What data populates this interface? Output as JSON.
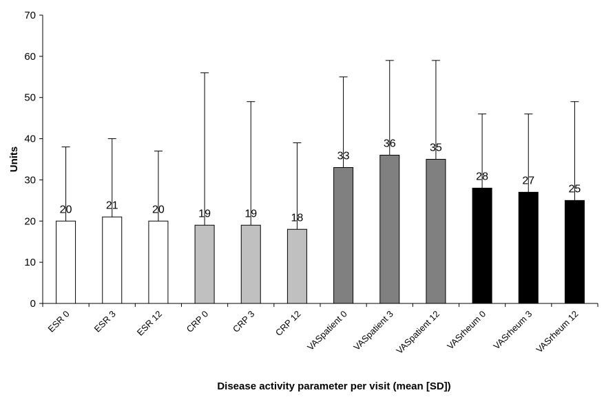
{
  "chart_data": {
    "type": "bar",
    "title": "",
    "xlabel": "Disease activity parameter per visit (mean [SD])",
    "ylabel": "Units",
    "ylim": [
      0,
      70
    ],
    "yticks": [
      0,
      10,
      20,
      30,
      40,
      50,
      60,
      70
    ],
    "grid": false,
    "legend": "none",
    "categories": [
      "ESR 0",
      "ESR 3",
      "ESR 12",
      "CRP 0",
      "CRP 3",
      "CRP 12",
      "VASpatient 0",
      "VASpatient 3",
      "VASpatient 12",
      "VASrheum 0",
      "VASrheum 3",
      "VASrheum 12"
    ],
    "values": [
      20,
      21,
      20,
      19,
      19,
      18,
      33,
      36,
      35,
      28,
      27,
      25
    ],
    "error_upper": [
      38,
      40,
      37,
      56,
      49,
      39,
      55,
      59,
      59,
      46,
      46,
      49
    ],
    "data_labels": [
      "20",
      "21",
      "20",
      "19",
      "19",
      "18",
      "33",
      "36",
      "35",
      "28",
      "27",
      "25"
    ],
    "bar_colors": [
      "#ffffff",
      "#ffffff",
      "#ffffff",
      "#c0c0c0",
      "#c0c0c0",
      "#c0c0c0",
      "#808080",
      "#808080",
      "#808080",
      "#000000",
      "#000000",
      "#000000"
    ]
  }
}
